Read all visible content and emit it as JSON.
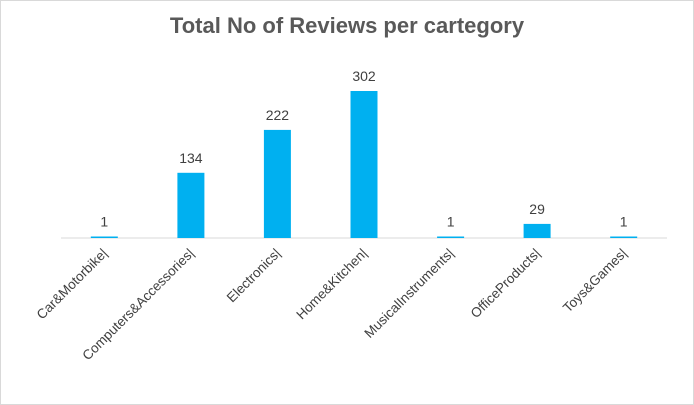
{
  "chart_data": {
    "type": "bar",
    "title": "Total No of Reviews per cartegory",
    "xlabel": "",
    "ylabel": "",
    "categories": [
      "Car&Motorbike|",
      "Computers&Accessories|",
      "Electronics|",
      "Home&Kitchen|",
      "MusicalInstruments|",
      "OfficeProducts|",
      "Toys&Games|"
    ],
    "values": [
      1,
      134,
      222,
      302,
      1,
      29,
      1
    ],
    "ylim": [
      0,
      302
    ],
    "grid": false,
    "legend": "none",
    "bar_color": "#00b0f0",
    "data_labels": true
  }
}
